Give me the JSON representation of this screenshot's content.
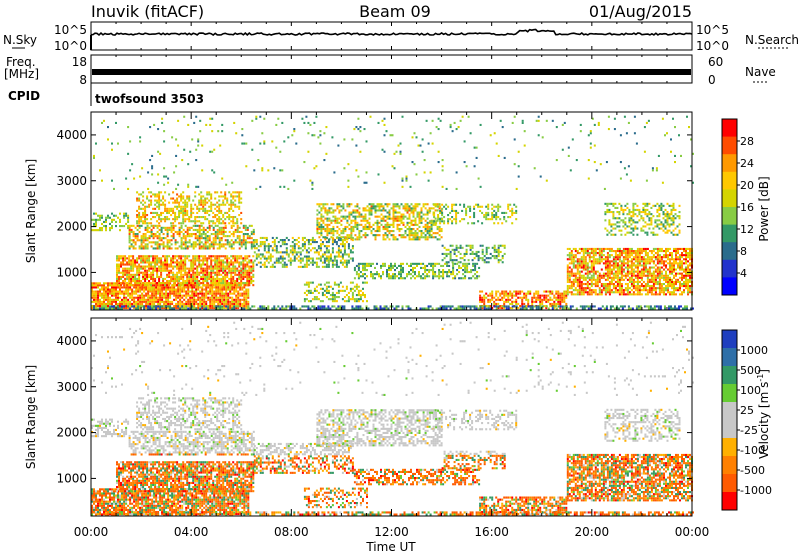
{
  "header": {
    "station": "Inuvik (fitACF)",
    "beam": "Beam 09",
    "date": "01/Aug/2015"
  },
  "colors": {
    "noise_trace": "#000000",
    "frame": "#000000"
  },
  "chart_data": [
    {
      "type": "line",
      "name": "noise-panel",
      "left_label": "N.Sky",
      "right_label": "N.Search",
      "left_ticks": [
        "10^5",
        "10^0"
      ],
      "right_ticks": [
        "10^5",
        "10^0"
      ]
    },
    {
      "type": "line",
      "name": "frequency-panel",
      "left_label_line1": "Freq.",
      "left_label_line2": "[MHz]",
      "right_label": "Nave",
      "left_ticks": [
        "18",
        "8"
      ],
      "right_ticks": [
        "60",
        "0"
      ],
      "cpid_label": "CPID",
      "cpid_value": "twofsound 3503"
    },
    {
      "type": "heatmap",
      "name": "power",
      "ylabel": "Slant Range [km]",
      "yticks": [
        "4000",
        "3000",
        "2000",
        "1000"
      ],
      "ytick_values": [
        4000,
        3000,
        2000,
        1000
      ],
      "ylim": [
        180,
        4500
      ],
      "colorbar_label": "Power [dB]",
      "colorbar_ticks": [
        "28",
        "24",
        "20",
        "16",
        "12",
        "8",
        "4"
      ],
      "colorbar_colors": [
        "#ff0000",
        "#ff4c00",
        "#ff9900",
        "#ffc800",
        "#d4d400",
        "#88cc44",
        "#339966",
        "#2a6c8c",
        "#2233cc",
        "#0000ff"
      ]
    },
    {
      "type": "heatmap",
      "name": "velocity",
      "ylabel": "Slant Range [km]",
      "yticks": [
        "4000",
        "3000",
        "2000",
        "1000"
      ],
      "ytick_values": [
        4000,
        3000,
        2000,
        1000
      ],
      "ylim": [
        180,
        4500
      ],
      "colorbar_label": "Velocity [m s",
      "colorbar_label_sup": "-1",
      "colorbar_label_end": "]",
      "colorbar_ticks": [
        "1000",
        "500",
        "100",
        "25",
        "-25",
        "-100",
        "-500",
        "-1000"
      ],
      "colorbar_colors": [
        "#1f3fbf",
        "#2e6fa8",
        "#339966",
        "#66cc33",
        "#c8c8c8",
        "#c8c8c8",
        "#ffb000",
        "#ff8000",
        "#ff5a00",
        "#ff0000"
      ]
    }
  ],
  "time_axis": {
    "label": "Time UT",
    "ticks": [
      "00:00",
      "04:00",
      "08:00",
      "12:00",
      "16:00",
      "20:00",
      "00:00"
    ],
    "tick_hours": [
      0,
      4,
      8,
      12,
      16,
      20,
      24
    ]
  }
}
